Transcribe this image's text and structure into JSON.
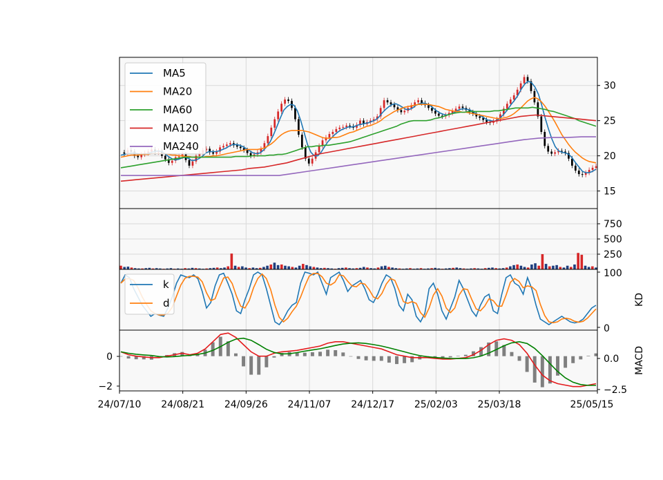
{
  "chart_data": {
    "type": "candlestick-with-indicators",
    "colors": {
      "MA5": "#1f77b4",
      "MA20": "#ff7f0e",
      "MA60": "#2ca02c",
      "MA120": "#d62728",
      "MA240": "#9467bd",
      "up": "#d62728",
      "down": "#000000",
      "k": "#1f77b4",
      "d": "#ff7f0e",
      "dif": "#e41a1c",
      "macd": "#008000",
      "hist": "#7f7f7f",
      "volume": "#1f3f7f",
      "panel_bg": "#f8f8f8",
      "grid": "#d9d9d9"
    },
    "x_tick_labels": [
      "24/07/10",
      "24/08/21",
      "24/09/26",
      "24/11/07",
      "24/12/17",
      "25/02/03",
      "25/03/18",
      "25/05/15"
    ],
    "price": {
      "ylim": [
        12.5,
        34
      ],
      "yticks": [
        "15",
        "20",
        "25",
        "30"
      ],
      "close": [
        20.5,
        20.3,
        20.8,
        20.6,
        20.0,
        19.8,
        20.2,
        20.4,
        20.6,
        20.9,
        20.5,
        20.7,
        20.0,
        19.5,
        19.0,
        19.3,
        19.8,
        19.9,
        20.2,
        19.4,
        18.6,
        19.2,
        20.0,
        20.4,
        20.8,
        21.0,
        20.5,
        20.3,
        20.6,
        21.2,
        21.4,
        21.6,
        21.8,
        21.5,
        21.3,
        21.1,
        20.8,
        20.4,
        20.0,
        20.2,
        20.5,
        21.0,
        21.8,
        22.8,
        24.0,
        25.2,
        26.3,
        27.4,
        28.0,
        27.8,
        26.8,
        25.2,
        23.0,
        21.2,
        19.6,
        18.9,
        19.6,
        20.5,
        21.4,
        22.2,
        22.6,
        23.1,
        23.4,
        23.8,
        24.0,
        24.1,
        24.3,
        24.2,
        24.0,
        24.4,
        25.0,
        24.5,
        24.8,
        25.0,
        25.2,
        25.6,
        26.8,
        27.9,
        27.6,
        27.3,
        26.9,
        26.5,
        26.2,
        26.4,
        26.8,
        27.2,
        27.6,
        27.9,
        27.5,
        27.2,
        26.8,
        26.4,
        26.0,
        25.7,
        25.6,
        25.8,
        26.1,
        26.4,
        26.7,
        27.0,
        26.8,
        26.5,
        26.2,
        26.0,
        25.6,
        25.4,
        25.1,
        24.8,
        24.7,
        24.9,
        25.2,
        25.9,
        26.7,
        27.4,
        28.0,
        28.6,
        29.4,
        30.3,
        31.2,
        30.6,
        29.2,
        27.6,
        25.6,
        23.4,
        21.4,
        20.6,
        20.3,
        20.5,
        20.7,
        20.6,
        20.4,
        19.6,
        18.6,
        17.9,
        17.4,
        17.3,
        17.6,
        18.0,
        18.3,
        18.5
      ],
      "ma5": [
        20.1,
        20.2,
        20.3,
        20.4,
        20.4,
        20.3,
        20.2,
        20.2,
        20.3,
        20.5,
        20.6,
        20.7,
        20.6,
        20.3,
        19.9,
        19.6,
        19.4,
        19.5,
        19.7,
        19.8,
        19.6,
        19.3,
        19.4,
        19.6,
        19.9,
        20.4,
        20.6,
        20.6,
        20.6,
        20.7,
        20.9,
        21.1,
        21.4,
        21.6,
        21.6,
        21.5,
        21.3,
        21.0,
        20.7,
        20.4,
        20.3,
        20.4,
        20.8,
        21.3,
        22.0,
        23.0,
        24.2,
        25.4,
        26.5,
        27.0,
        27.3,
        27.2,
        26.4,
        25.0,
        23.3,
        21.6,
        20.5,
        20.0,
        20.0,
        20.5,
        21.3,
        22.0,
        22.5,
        23.0,
        23.4,
        23.7,
        23.9,
        24.1,
        24.1,
        24.2,
        24.4,
        24.5,
        24.6,
        24.7,
        24.9,
        25.1,
        25.5,
        26.1,
        26.6,
        27.0,
        27.3,
        27.4,
        27.2,
        26.9,
        26.6,
        26.6,
        26.8,
        27.2,
        27.4,
        27.5,
        27.4,
        27.2,
        26.8,
        26.4,
        26.1,
        25.9,
        25.8,
        25.9,
        26.1,
        26.4,
        26.6,
        26.7,
        26.6,
        26.5,
        26.2,
        25.9,
        25.7,
        25.4,
        25.1,
        25.0,
        24.9,
        25.1,
        25.5,
        26.0,
        26.6,
        27.3,
        27.9,
        28.6,
        29.5,
        30.2,
        30.6,
        30.4,
        29.8,
        28.8,
        27.2,
        25.4,
        23.8,
        22.4,
        21.3,
        20.7,
        20.5,
        20.4,
        20.2,
        19.7,
        19.0,
        18.4,
        17.8,
        17.6,
        17.6,
        17.8,
        18.1
      ]
    },
    "ma_series": [
      {
        "name": "MA5",
        "key": "ma5"
      },
      {
        "name": "MA20",
        "values": [
          19.8,
          19.9,
          20.0,
          20.1,
          20.1,
          20.1,
          20.2,
          20.2,
          20.2,
          20.3,
          20.3,
          20.3,
          20.3,
          20.3,
          20.2,
          20.1,
          20.1,
          20.0,
          20.0,
          19.9,
          19.9,
          19.8,
          19.8,
          19.8,
          19.8,
          19.9,
          19.9,
          20.0,
          20.0,
          20.1,
          20.2,
          20.3,
          20.4,
          20.5,
          20.6,
          20.7,
          20.8,
          20.9,
          20.9,
          20.9,
          20.9,
          21.0,
          21.1,
          21.4,
          21.7,
          22.1,
          22.6,
          23.0,
          23.3,
          23.5,
          23.6,
          23.6,
          23.6,
          23.6,
          23.5,
          23.4,
          23.2,
          23.0,
          22.8,
          22.6,
          22.5,
          22.5,
          22.6,
          22.6,
          22.7,
          22.9,
          23.1,
          23.3,
          23.4,
          23.6,
          23.8,
          24.0,
          24.2,
          24.3,
          24.5,
          24.7,
          25.0,
          25.4,
          25.7,
          26.0,
          26.3,
          26.5,
          26.7,
          26.9,
          27.0,
          27.1,
          27.2,
          27.3,
          27.3,
          27.3,
          27.3,
          27.2,
          27.1,
          27.0,
          26.8,
          26.6,
          26.5,
          26.4,
          26.3,
          26.3,
          26.2,
          26.2,
          26.1,
          26.0,
          25.9,
          25.8,
          25.7,
          25.6,
          25.5,
          25.4,
          25.3,
          25.3,
          25.4,
          25.5,
          25.7,
          26.0,
          26.4,
          26.8,
          27.3,
          27.8,
          28.1,
          28.3,
          28.1,
          27.7,
          27.1,
          26.4,
          25.6,
          24.8,
          23.9,
          23.0,
          22.3,
          21.6,
          21.0,
          20.5,
          20.1,
          19.7,
          19.4,
          19.2,
          19.1,
          19.0
        ]
      },
      {
        "name": "MA60",
        "values": [
          18.3,
          18.4,
          18.5,
          18.6,
          18.7,
          18.8,
          18.9,
          19.0,
          19.1,
          19.2,
          19.3,
          19.4,
          19.5,
          19.6,
          19.7,
          19.8,
          19.8,
          19.8,
          19.8,
          19.8,
          19.8,
          19.8,
          19.8,
          19.8,
          19.8,
          19.8,
          19.8,
          19.9,
          19.9,
          19.9,
          19.9,
          20.0,
          20.0,
          20.0,
          20.0,
          20.1,
          20.1,
          20.2,
          20.2,
          20.3,
          20.5,
          20.7,
          20.9,
          21.1,
          21.3,
          21.3,
          21.4,
          21.4,
          21.5,
          21.5,
          21.6,
          21.7,
          21.8,
          21.9,
          22.0,
          22.2,
          22.4,
          22.6,
          22.8,
          23.0,
          23.2,
          23.4,
          23.6,
          23.8,
          24.0,
          24.2,
          24.5,
          24.7,
          24.9,
          25.0,
          25.0,
          25.0,
          25.0,
          25.1,
          25.3,
          25.4,
          25.6,
          25.8,
          26.0,
          26.1,
          26.2,
          26.2,
          26.3,
          26.3,
          26.3,
          26.3,
          26.3,
          26.3,
          26.4,
          26.4,
          26.5,
          26.6,
          26.7,
          26.8,
          26.8,
          26.8,
          26.8,
          26.9,
          26.8,
          26.7,
          26.6,
          26.4,
          26.3,
          26.1,
          25.9,
          25.7,
          25.5,
          25.3,
          25.0,
          24.8,
          24.6,
          24.4,
          24.2
        ]
      },
      {
        "name": "MA120",
        "values": [
          16.4,
          16.5,
          16.6,
          16.7,
          16.8,
          16.9,
          17.0,
          17.1,
          17.2,
          17.3,
          17.4,
          17.5,
          17.6,
          17.7,
          17.8,
          17.9,
          18.0,
          18.2,
          18.3,
          18.4,
          18.6,
          18.8,
          19.0,
          19.3,
          19.6,
          19.9,
          20.2,
          20.4,
          20.6,
          20.8,
          21.0,
          21.2,
          21.4,
          21.6,
          21.8,
          22.0,
          22.2,
          22.4,
          22.6,
          22.8,
          23.0,
          23.2,
          23.4,
          23.6,
          23.8,
          24.0,
          24.2,
          24.4,
          24.6,
          24.8,
          25.0,
          25.2,
          25.4,
          25.6,
          25.7,
          25.8,
          25.7,
          25.6,
          25.5,
          25.4,
          25.3,
          25.2,
          25.1,
          25.0
        ]
      },
      {
        "name": "MA240",
        "values": [
          17.2,
          17.2,
          17.2,
          17.2,
          17.2,
          17.2,
          17.2,
          17.2,
          17.2,
          17.2,
          17.2,
          17.2,
          17.5,
          17.8,
          18.1,
          18.4,
          18.7,
          19.0,
          19.3,
          19.6,
          19.9,
          20.2,
          20.5,
          20.8,
          21.1,
          21.4,
          21.7,
          22.0,
          22.3,
          22.5,
          22.6,
          22.6,
          22.7,
          22.7
        ]
      }
    ],
    "volume": {
      "ylim": [
        0,
        1000
      ],
      "yticks": [
        "250",
        "500",
        "750"
      ],
      "values": [
        60,
        40,
        45,
        30,
        20,
        15,
        15,
        20,
        25,
        15,
        20,
        15,
        10,
        15,
        20,
        10,
        15,
        10,
        20,
        15,
        25,
        20,
        15,
        10,
        15,
        20,
        25,
        30,
        20,
        30,
        50,
        260,
        60,
        40,
        50,
        30,
        20,
        30,
        20,
        25,
        40,
        60,
        80,
        110,
        70,
        80,
        60,
        50,
        40,
        30,
        60,
        90,
        70,
        50,
        40,
        30,
        20,
        25,
        20,
        15,
        10,
        20,
        25,
        30,
        20,
        15,
        20,
        25,
        40,
        30,
        20,
        15,
        30,
        50,
        60,
        40,
        30,
        20,
        15,
        10,
        15,
        20,
        10,
        15,
        20,
        10,
        15,
        20,
        25,
        15,
        10,
        15,
        20,
        25,
        30,
        20,
        15,
        10,
        15,
        20,
        15,
        10,
        20,
        25,
        30,
        20,
        15,
        20,
        30,
        50,
        70,
        80,
        60,
        40,
        30,
        80,
        100,
        60,
        250,
        90,
        50,
        60,
        70,
        40,
        30,
        60,
        40,
        80,
        270,
        240,
        60,
        40,
        50,
        30
      ]
    },
    "kd": {
      "ylim": [
        -5,
        105
      ],
      "yticks": [
        "0",
        "100"
      ],
      "ylabel": "KD",
      "k": [
        80,
        95,
        90,
        70,
        55,
        40,
        30,
        20,
        25,
        22,
        20,
        35,
        55,
        80,
        95,
        92,
        90,
        95,
        88,
        65,
        35,
        45,
        75,
        95,
        98,
        80,
        60,
        30,
        25,
        50,
        70,
        95,
        100,
        95,
        70,
        40,
        10,
        5,
        15,
        30,
        40,
        45,
        80,
        100,
        98,
        95,
        100,
        80,
        60,
        90,
        95,
        100,
        85,
        65,
        75,
        80,
        85,
        70,
        50,
        45,
        60,
        80,
        95,
        90,
        70,
        40,
        30,
        60,
        50,
        20,
        10,
        25,
        70,
        80,
        60,
        30,
        15,
        35,
        55,
        85,
        70,
        50,
        30,
        20,
        40,
        55,
        60,
        30,
        25,
        60,
        90,
        95,
        80,
        75,
        60,
        90,
        70,
        40,
        15,
        10,
        5,
        10,
        15,
        20,
        15,
        10,
        8,
        10,
        15,
        25,
        35,
        40
      ]
    },
    "macd": {
      "ylim": [
        -2.4,
        1.8
      ],
      "yticks_left": [
        "0",
        "−2"
      ],
      "yticks_right": [
        "0.0",
        "−2.5"
      ],
      "ylabel": "MACD",
      "dif": [
        0.3,
        0.1,
        0.0,
        -0.05,
        -0.1,
        -0.1,
        0.0,
        0.1,
        0.2,
        0.1,
        0.2,
        0.5,
        1.0,
        1.5,
        1.6,
        1.3,
        0.8,
        0.3,
        0.0,
        0.0,
        0.2,
        0.3,
        0.35,
        0.4,
        0.5,
        0.6,
        0.7,
        0.9,
        1.0,
        1.0,
        0.9,
        0.8,
        0.7,
        0.6,
        0.5,
        0.3,
        0.1,
        0.0,
        -0.1,
        -0.1,
        -0.1,
        -0.15,
        -0.2,
        -0.2,
        -0.15,
        -0.1,
        0.1,
        0.4,
        0.8,
        1.1,
        1.2,
        1.1,
        0.8,
        0.2,
        -0.6,
        -1.3,
        -1.7,
        -1.9,
        -2.0,
        -2.1,
        -2.1,
        -2.0,
        -1.9
      ]
    }
  }
}
